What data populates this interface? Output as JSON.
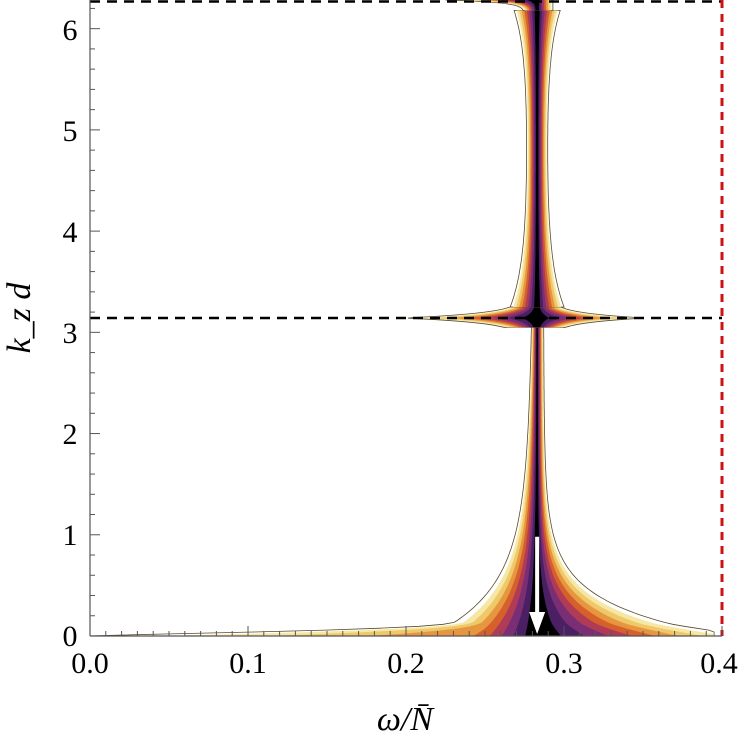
{
  "chart_data": {
    "type": "contour",
    "xlabel": "ω/N̄",
    "ylabel": "k_z d",
    "xlim": [
      0.0,
      0.4
    ],
    "ylim": [
      0,
      6.2832
    ],
    "x_ticks": [
      "0.0",
      "0.1",
      "0.2",
      "0.3",
      "0.4"
    ],
    "y_ticks": [
      "0",
      "1",
      "2",
      "3",
      "4",
      "5",
      "6"
    ],
    "reference_lines": [
      {
        "orientation": "horizontal",
        "y": 3.1416,
        "style": "dashed",
        "color": "#000000"
      },
      {
        "orientation": "horizontal",
        "y": 6.2832,
        "style": "dashed",
        "color": "#000000"
      },
      {
        "orientation": "vertical",
        "x": 0.4,
        "style": "dashed",
        "color": "#cc1111"
      }
    ],
    "arrow": {
      "x": 0.283,
      "y_from": 0.98,
      "y_to": 0.0,
      "color": "#ffffff"
    },
    "colormap": [
      "#ffffff",
      "#f6e8a4",
      "#efc86a",
      "#e79640",
      "#d5602b",
      "#b03b57",
      "#7a2e74",
      "#4a1f63",
      "#000000"
    ],
    "regions": [
      {
        "name": "lower lobe",
        "k_range": [
          0,
          3.05
        ],
        "omega_range": [
          0.0,
          0.39
        ],
        "center": 0.283
      },
      {
        "name": "middle lobe",
        "k_range": [
          3.05,
          3.25
        ],
        "omega_range": [
          0.205,
          0.345
        ],
        "center": 0.283
      },
      {
        "name": "upper lobe",
        "k_range": [
          6.18,
          6.2832
        ],
        "omega_range": [
          0.23,
          0.285
        ],
        "center": 0.285
      }
    ]
  }
}
